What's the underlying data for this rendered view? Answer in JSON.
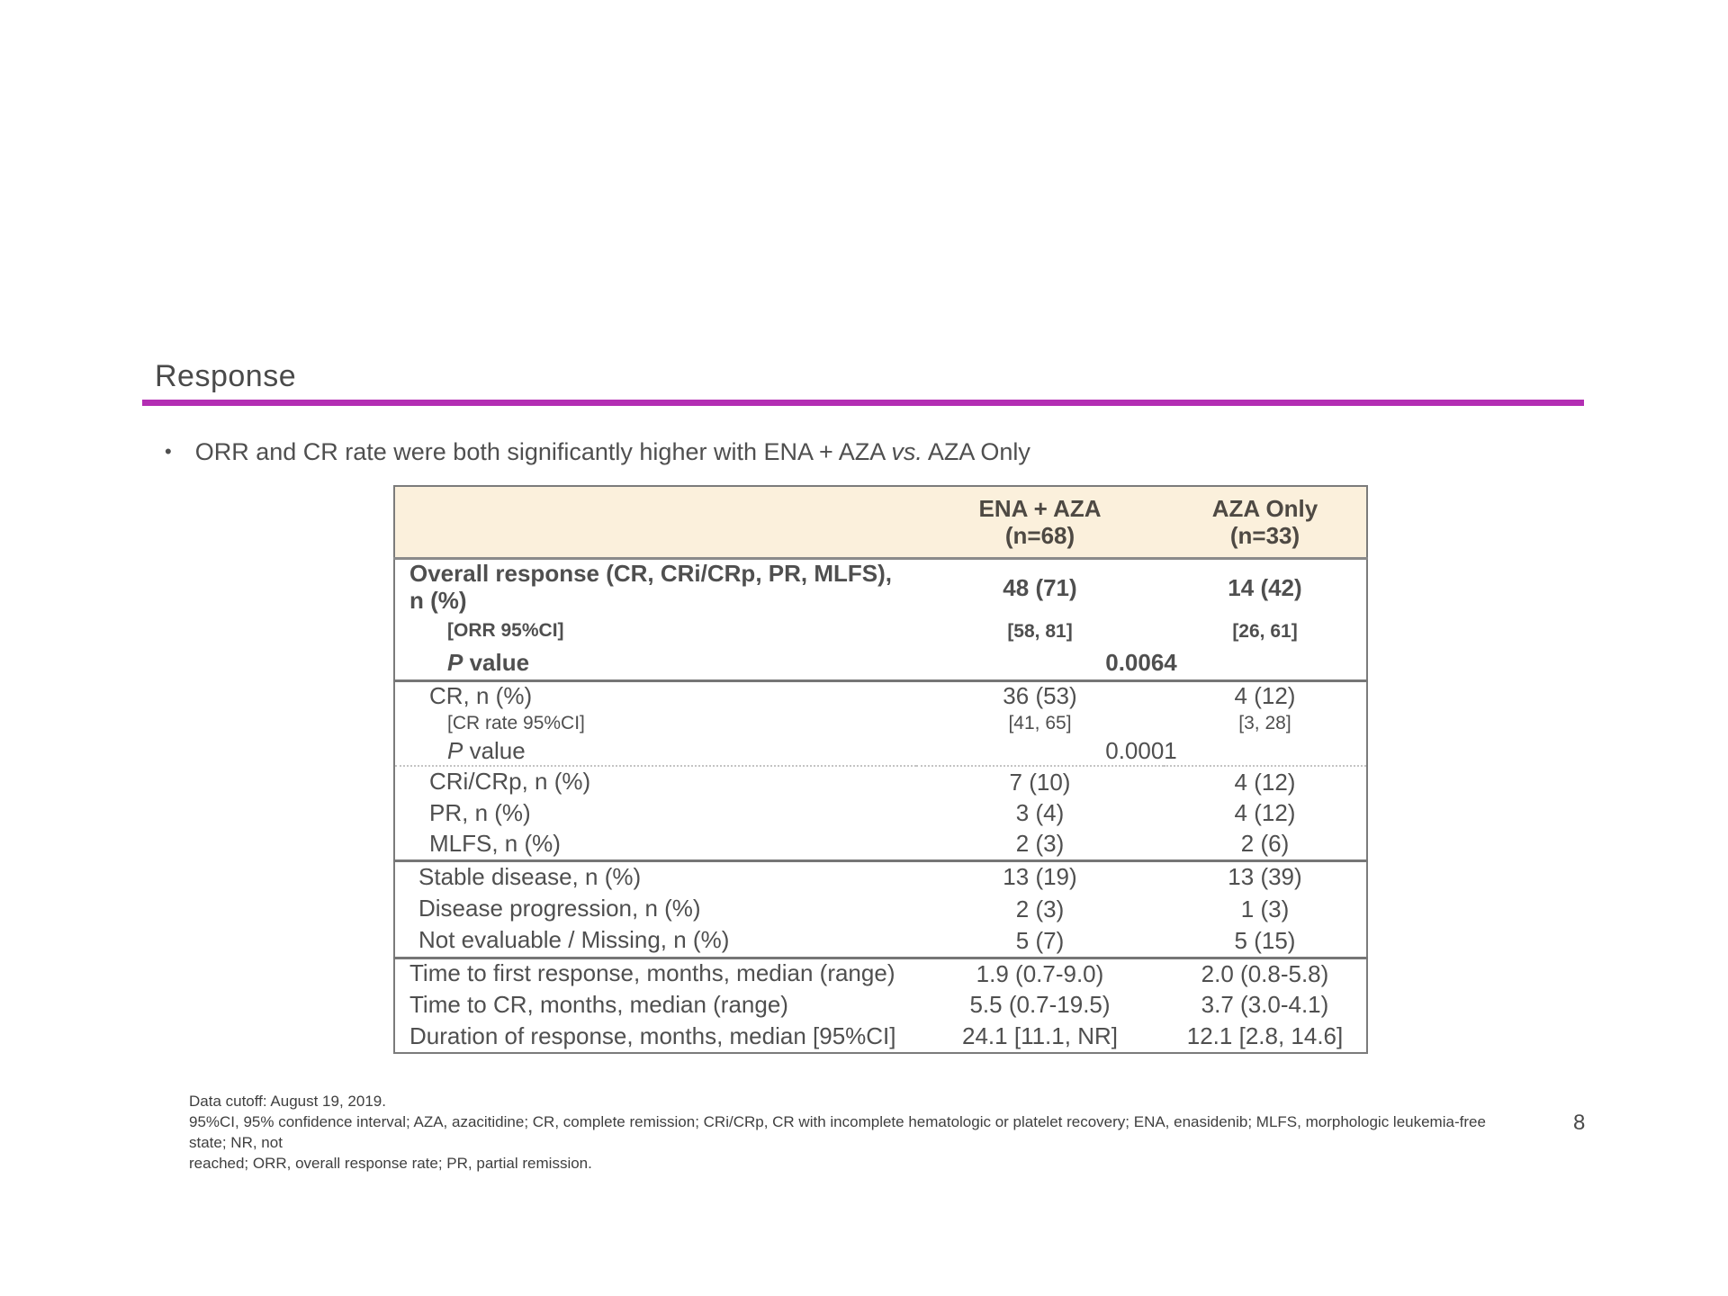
{
  "slide": {
    "title": "Response",
    "accent_color": "#b32eb3",
    "bullet": {
      "marker": "•",
      "pre": "ORR and CR rate were both significantly higher with ENA + AZA ",
      "italic": "vs.",
      "post": " AZA Only"
    },
    "page_number": "8"
  },
  "table": {
    "header_bg": "#fbf0dc",
    "columns": [
      {
        "name": "ENA + AZA",
        "n": "(n=68)"
      },
      {
        "name": "AZA Only",
        "n": "(n=33)"
      }
    ],
    "rows": [
      {
        "label": "Overall response (CR, CRi/CRp, PR, MLFS), n (%)",
        "ena": "48 (71)",
        "aza": "14 (42)"
      },
      {
        "label": "[ORR 95%CI]",
        "ena": "[58, 81]",
        "aza": "[26, 61]"
      },
      {
        "p_italic": "P",
        "label": " value",
        "p_value": "0.0064"
      },
      {
        "label": "CR, n (%)",
        "ena": "36 (53)",
        "aza": "4 (12)"
      },
      {
        "label": "[CR rate 95%CI]",
        "ena": "[41, 65]",
        "aza": "[3, 28]"
      },
      {
        "p_italic": "P",
        "label": " value",
        "p_value": "0.0001"
      },
      {
        "label": "CRi/CRp, n (%)",
        "ena": "7 (10)",
        "aza": "4 (12)"
      },
      {
        "label": "PR, n (%)",
        "ena": "3 (4)",
        "aza": "4 (12)"
      },
      {
        "label": "MLFS, n (%)",
        "ena": "2 (3)",
        "aza": "2 (6)"
      },
      {
        "label": "Stable disease, n (%)",
        "ena": "13 (19)",
        "aza": "13 (39)"
      },
      {
        "label": "Disease progression, n (%)",
        "ena": "2 (3)",
        "aza": "1 (3)"
      },
      {
        "label": "Not evaluable / Missing, n (%)",
        "ena": "5 (7)",
        "aza": "5 (15)"
      },
      {
        "label": "Time to first response, months, median (range)",
        "ena": "1.9 (0.7-9.0)",
        "aza": "2.0 (0.8-5.8)"
      },
      {
        "label": "Time to CR, months, median (range)",
        "ena": "5.5 (0.7-19.5)",
        "aza": "3.7 (3.0-4.1)"
      },
      {
        "label": "Duration of response, months, median [95%CI]",
        "ena": "24.1 [11.1, NR]",
        "aza": "12.1 [2.8, 14.6]"
      }
    ]
  },
  "footer": {
    "line1": "Data cutoff: August 19, 2019.",
    "line2": "95%CI, 95% confidence interval; AZA, azacitidine; CR, complete remission; CRi/CRp, CR with incomplete hematologic or platelet recovery; ENA, enasidenib; MLFS, morphologic leukemia-free state; NR, not",
    "line3": "reached; ORR, overall response rate; PR, partial remission."
  }
}
